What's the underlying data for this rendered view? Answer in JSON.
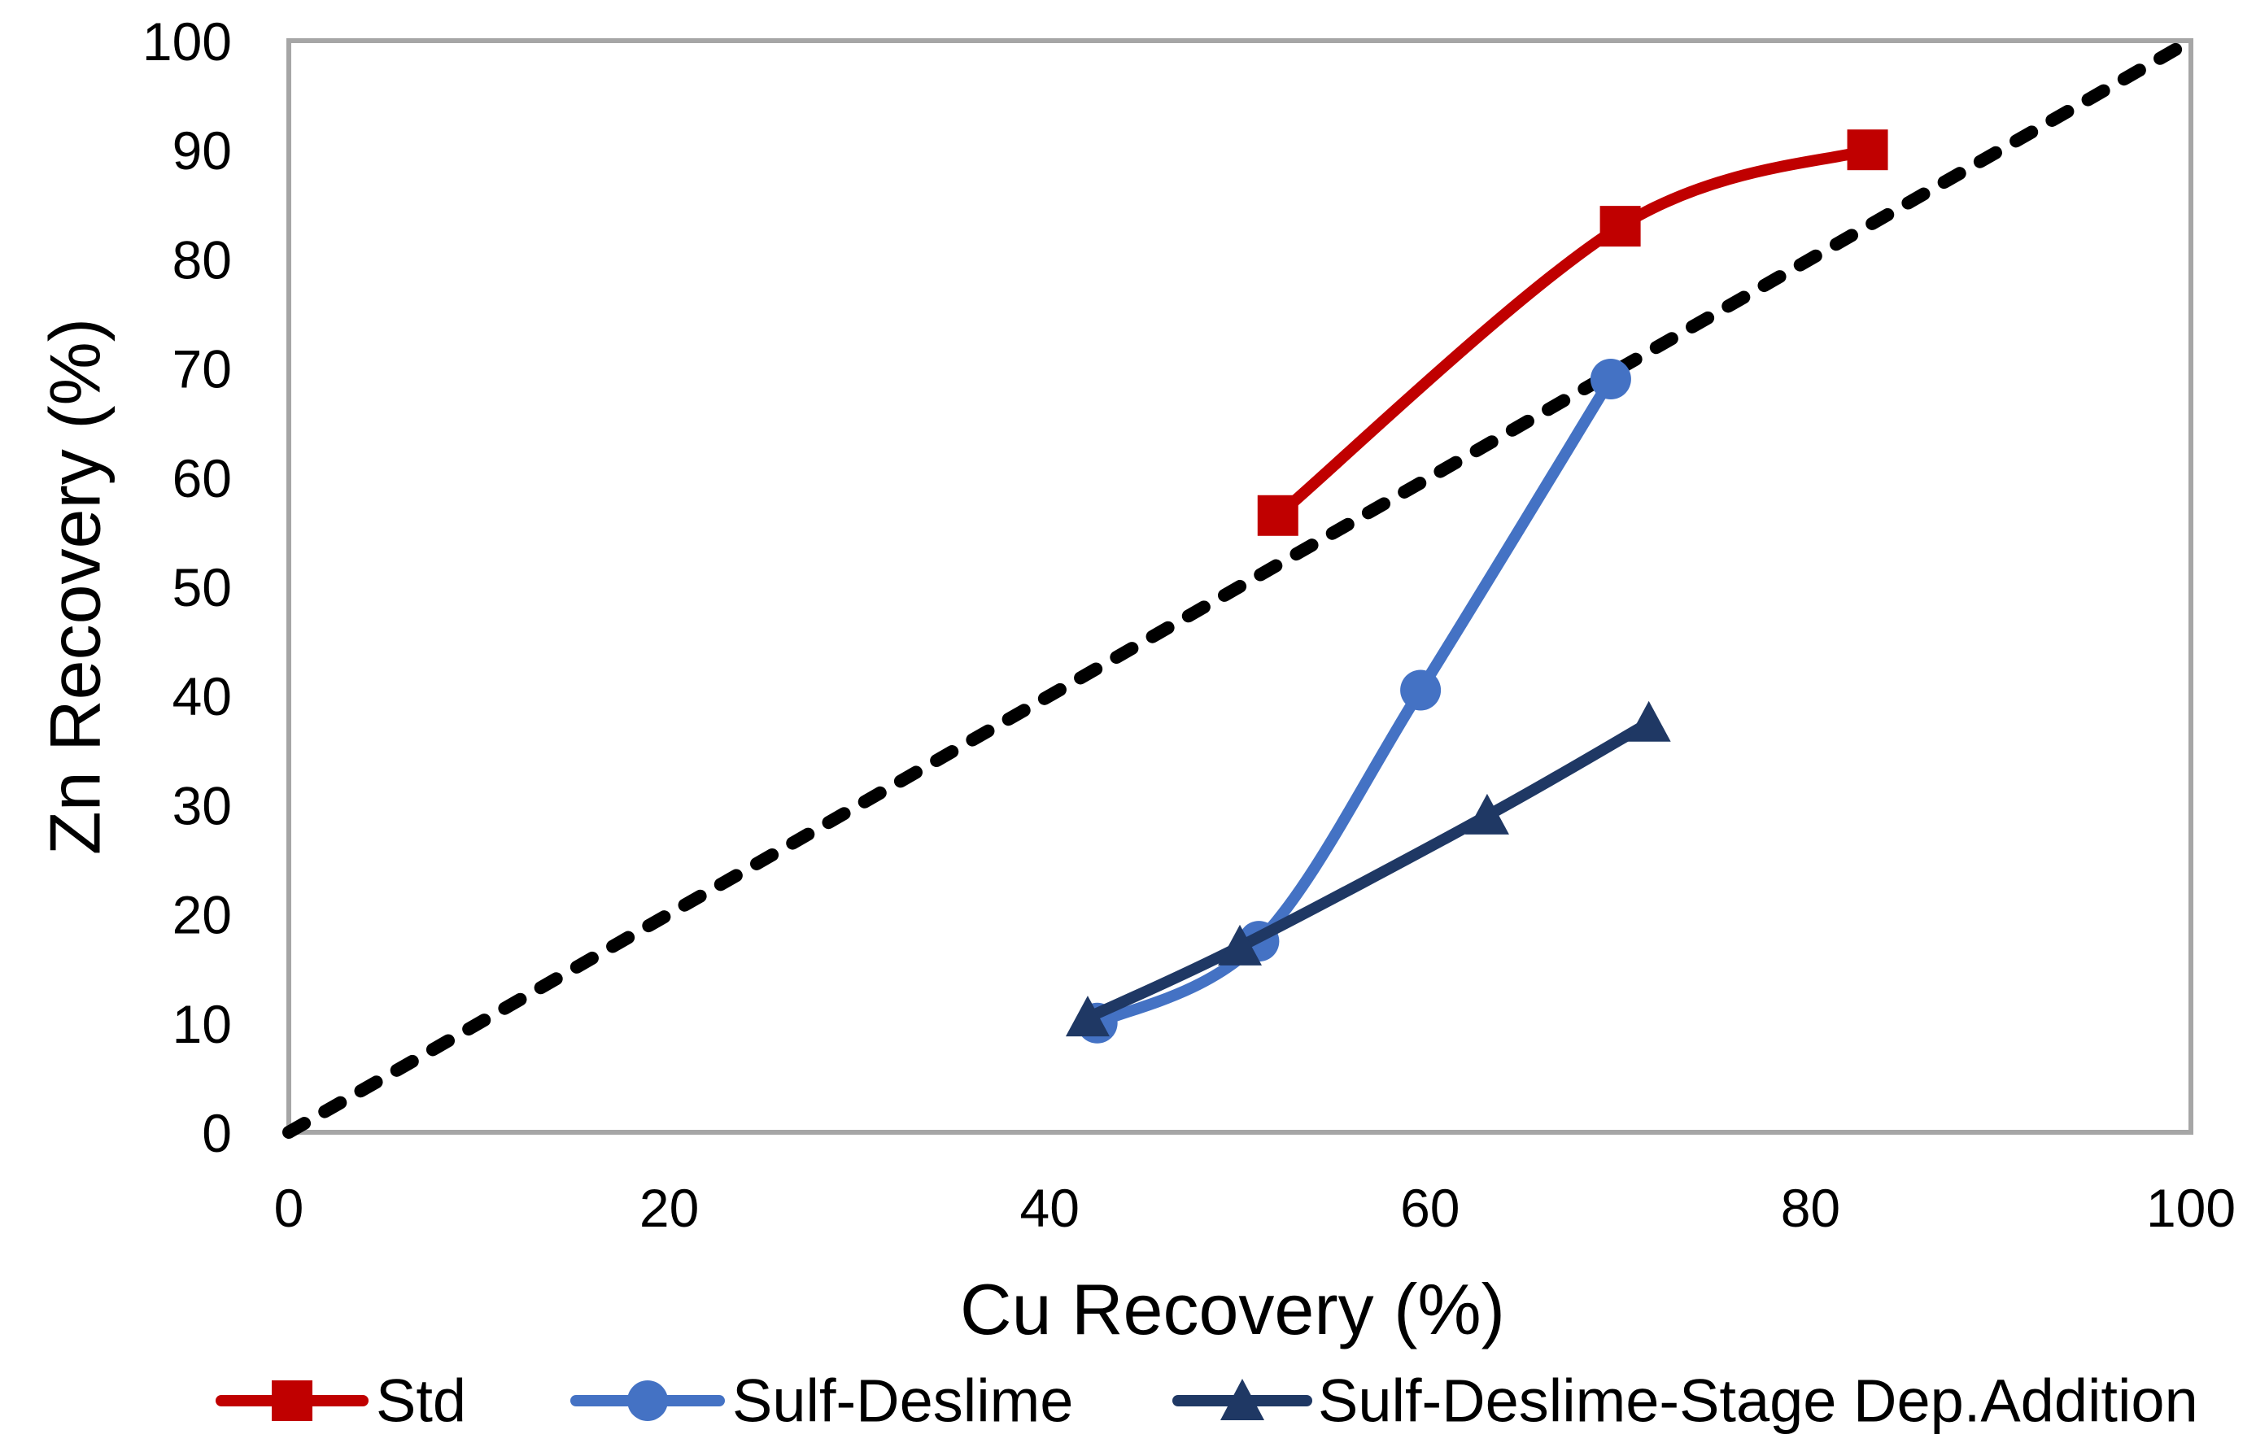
{
  "chart_data": {
    "type": "line",
    "title": "",
    "xlabel": "Cu Recovery (%)",
    "ylabel": "Zn Recovery (%)",
    "xlim": [
      0,
      100
    ],
    "ylim": [
      0,
      100
    ],
    "xticks": [
      0,
      20,
      40,
      60,
      80,
      100
    ],
    "yticks": [
      0,
      10,
      20,
      30,
      40,
      50,
      60,
      70,
      80,
      90,
      100
    ],
    "grid": false,
    "legend_position": "bottom",
    "plot_border_color": "#A6A6A6",
    "series": [
      {
        "name": "Std",
        "color": "#C00000",
        "marker": "square",
        "points": [
          [
            52,
            56.5
          ],
          [
            70,
            83
          ],
          [
            83,
            90
          ]
        ]
      },
      {
        "name": "Sulf-Deslime",
        "color": "#4472C4",
        "marker": "circle",
        "points": [
          [
            42.5,
            10
          ],
          [
            51,
            17.5
          ],
          [
            59.5,
            40.5
          ],
          [
            69.5,
            69
          ]
        ]
      },
      {
        "name": "Sulf-Deslime-Stage Dep.Addition",
        "color": "#1F3864",
        "marker": "triangle",
        "points": [
          [
            42,
            10.5
          ],
          [
            50,
            17
          ],
          [
            63,
            29
          ],
          [
            71.5,
            37.5
          ]
        ]
      }
    ],
    "reference_line": {
      "style": "dashed",
      "color": "#000000",
      "from": [
        0,
        0
      ],
      "to": [
        100,
        100
      ]
    }
  }
}
